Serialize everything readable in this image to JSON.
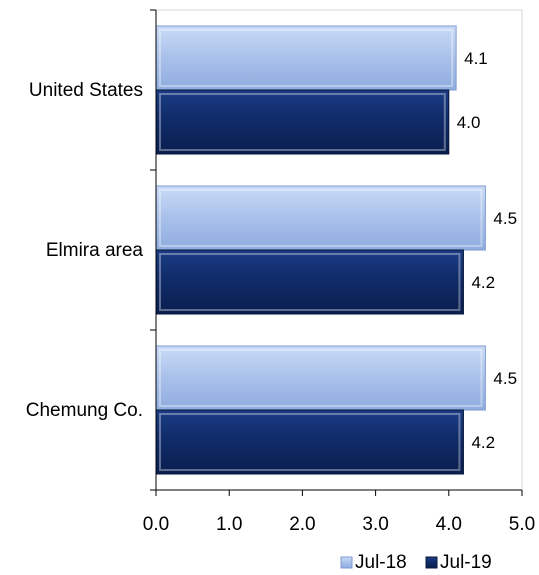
{
  "chart_data": {
    "type": "bar",
    "orientation": "horizontal",
    "categories": [
      "United States",
      "Elmira area",
      "Chemung Co."
    ],
    "series": [
      {
        "name": "Jul-18",
        "values": [
          4.1,
          4.5,
          4.5
        ],
        "color": "#a9c1ea"
      },
      {
        "name": "Jul-19",
        "values": [
          4.0,
          4.2,
          4.2
        ],
        "color": "#0f2a66"
      }
    ],
    "data_labels": [
      [
        "4.1",
        "4.5",
        "4.5"
      ],
      [
        "4.0",
        "4.2",
        "4.2"
      ]
    ],
    "x_ticks": [
      "0.0",
      "1.0",
      "2.0",
      "3.0",
      "4.0",
      "5.0"
    ],
    "xlim": [
      0,
      5
    ],
    "title": "",
    "xlabel": "",
    "ylabel": "",
    "grid": false,
    "legend_position": "bottom-right",
    "colors": {
      "axis": "#000000",
      "plot_border": "#d9d9d9",
      "light_edge": "#7f9bd0",
      "dark_edge": "#071638"
    }
  }
}
